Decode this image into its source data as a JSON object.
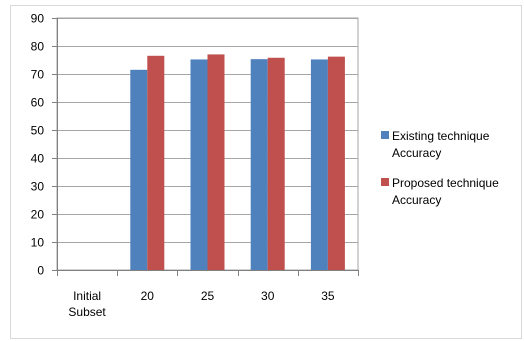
{
  "chart_data": {
    "type": "bar",
    "categories": [
      [
        "Initial",
        "Subset"
      ],
      [
        "20"
      ],
      [
        "25"
      ],
      [
        "30"
      ],
      [
        "35"
      ]
    ],
    "series": [
      {
        "name": [
          "Existing technique",
          "Accuracy"
        ],
        "color": "#4F81BD",
        "values": [
          null,
          71.5,
          75.2,
          75.3,
          75.2
        ]
      },
      {
        "name": [
          "Proposed technique",
          "Accuracy"
        ],
        "color": "#C0504D",
        "values": [
          null,
          76.5,
          77.0,
          75.8,
          76.2
        ]
      }
    ],
    "ylim": [
      0,
      90
    ],
    "yticks": [
      0,
      10,
      20,
      30,
      40,
      50,
      60,
      70,
      80,
      90
    ],
    "grid": true,
    "legend": "right"
  }
}
